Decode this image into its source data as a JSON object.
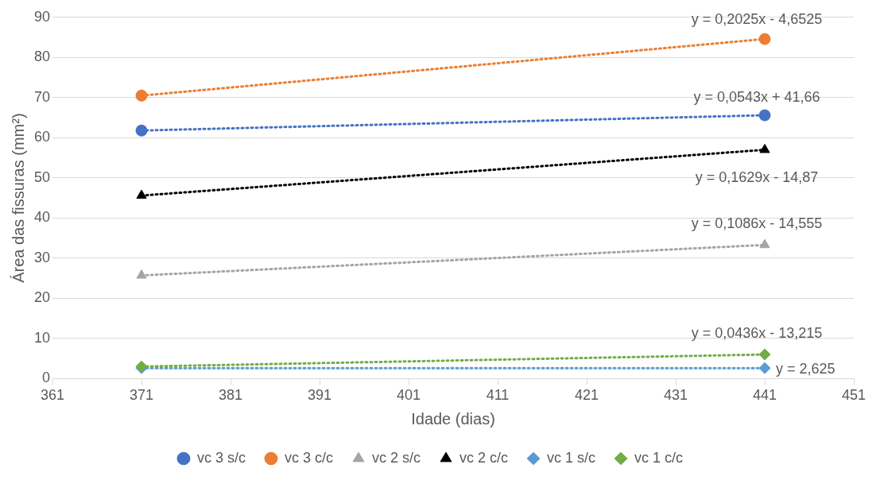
{
  "chart_data": {
    "type": "line",
    "xlabel": "Idade (dias)",
    "ylabel": "Área das fissuras (mm²)",
    "xlim": [
      361,
      451
    ],
    "xticks": [
      361,
      371,
      381,
      391,
      401,
      411,
      421,
      431,
      441,
      451
    ],
    "ylim": [
      0,
      90
    ],
    "yticks": [
      0,
      10,
      20,
      30,
      40,
      50,
      60,
      70,
      80,
      90
    ],
    "grid": "y",
    "legend": "bottom",
    "line_style": "dotted",
    "x": [
      371,
      441
    ],
    "series": [
      {
        "name": "vc 3 s/c",
        "color": "#4472c4",
        "values": [
          61.8,
          65.6
        ],
        "marker": "circle"
      },
      {
        "name": "vc 3 c/c",
        "color": "#ed7d31",
        "values": [
          70.5,
          84.6
        ],
        "marker": "circle"
      },
      {
        "name": "vc 2 s/c",
        "color": "#a5a5a5",
        "values": [
          25.7,
          33.3
        ],
        "marker": "triangle"
      },
      {
        "name": "vc 2 c/c",
        "color": "#000000",
        "values": [
          45.6,
          57.0
        ],
        "marker": "triangle"
      },
      {
        "name": "vc 1 s/c",
        "color": "#5b9bd5",
        "values": [
          2.6,
          2.6
        ],
        "marker": "diamond"
      },
      {
        "name": "vc 1 c/c",
        "color": "#70ad47",
        "values": [
          3.0,
          6.0
        ],
        "marker": "diamond"
      }
    ],
    "annotations": [
      "y = 0,0543x + 41,66",
      "y = 0,2025x - 4,6525",
      "y = 0,1086x - 14,555",
      "y = 0,1629x - 14,87",
      "y = 2,625",
      "y = 0,0436x - 13,215"
    ]
  }
}
